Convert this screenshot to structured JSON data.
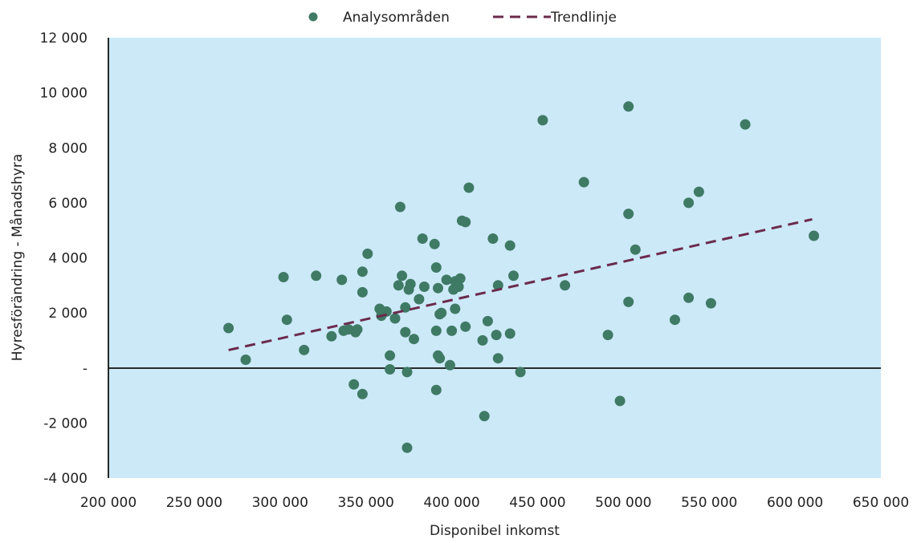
{
  "chart_data": {
    "type": "scatter",
    "xlabel": "Disponibel inkomst",
    "ylabel": "Hyresförändring - Månadshyra",
    "xlim": [
      200000,
      650000
    ],
    "ylim": [
      -4000,
      12000
    ],
    "x_ticks": [
      200000,
      250000,
      300000,
      350000,
      400000,
      450000,
      500000,
      550000,
      600000,
      650000
    ],
    "x_tick_labels": [
      "200 000",
      "250 000",
      "300 000",
      "350 000",
      "400 000",
      "450 000",
      "500 000",
      "550 000",
      "600 000",
      "650 000"
    ],
    "y_ticks": [
      12000,
      10000,
      8000,
      6000,
      4000,
      2000,
      0,
      -2000,
      -4000
    ],
    "y_tick_labels": [
      "12 000",
      "10 000",
      "8 000",
      "6 000",
      "4 000",
      "2 000",
      "-",
      "-2 000",
      "-4 000"
    ],
    "legend": {
      "position": "top-center",
      "scatter_label": "Analysområden",
      "trend_label": "Trendlinje"
    },
    "colors": {
      "points": "#3f7a65",
      "trend": "#6b2a4c",
      "plot_background": "#cce9f8",
      "zero_line": "#111111"
    },
    "trendline": {
      "x": [
        270000,
        610000
      ],
      "y": [
        650,
        5400
      ]
    },
    "series": [
      {
        "name": "Analysområden",
        "points": [
          [
            270000,
            1450
          ],
          [
            280000,
            300
          ],
          [
            302000,
            3300
          ],
          [
            304000,
            1750
          ],
          [
            314000,
            650
          ],
          [
            321000,
            3350
          ],
          [
            330000,
            1150
          ],
          [
            336000,
            3200
          ],
          [
            337000,
            1350
          ],
          [
            340000,
            1400
          ],
          [
            343000,
            -600
          ],
          [
            344000,
            1300
          ],
          [
            345000,
            1400
          ],
          [
            348000,
            3500
          ],
          [
            348000,
            2750
          ],
          [
            348000,
            -950
          ],
          [
            351000,
            4150
          ],
          [
            358000,
            2150
          ],
          [
            359000,
            1900
          ],
          [
            362000,
            2050
          ],
          [
            364000,
            -50
          ],
          [
            364000,
            450
          ],
          [
            367000,
            1800
          ],
          [
            369000,
            3000
          ],
          [
            370000,
            5850
          ],
          [
            371000,
            3350
          ],
          [
            373000,
            1300
          ],
          [
            373000,
            2200
          ],
          [
            374000,
            -150
          ],
          [
            374000,
            -2900
          ],
          [
            375000,
            2850
          ],
          [
            376000,
            3050
          ],
          [
            378000,
            1050
          ],
          [
            381000,
            2500
          ],
          [
            383000,
            4700
          ],
          [
            384000,
            2950
          ],
          [
            390000,
            4500
          ],
          [
            391000,
            3650
          ],
          [
            391000,
            1350
          ],
          [
            391000,
            -800
          ],
          [
            392000,
            2900
          ],
          [
            392000,
            450
          ],
          [
            393000,
            350
          ],
          [
            393000,
            1950
          ],
          [
            394000,
            2000
          ],
          [
            397000,
            3200
          ],
          [
            399000,
            100
          ],
          [
            400000,
            1350
          ],
          [
            401000,
            2850
          ],
          [
            402000,
            2150
          ],
          [
            402000,
            3150
          ],
          [
            404000,
            2950
          ],
          [
            405000,
            3250
          ],
          [
            406000,
            5350
          ],
          [
            408000,
            5300
          ],
          [
            408000,
            1500
          ],
          [
            410000,
            6550
          ],
          [
            418000,
            1000
          ],
          [
            419000,
            -1750
          ],
          [
            421000,
            1700
          ],
          [
            424000,
            4700
          ],
          [
            426000,
            1200
          ],
          [
            427000,
            350
          ],
          [
            427000,
            3000
          ],
          [
            434000,
            4450
          ],
          [
            434000,
            1250
          ],
          [
            436000,
            3350
          ],
          [
            440000,
            -150
          ],
          [
            453000,
            9000
          ],
          [
            466000,
            3000
          ],
          [
            477000,
            6750
          ],
          [
            491000,
            1200
          ],
          [
            498000,
            -1200
          ],
          [
            503000,
            9500
          ],
          [
            503000,
            5600
          ],
          [
            503000,
            2400
          ],
          [
            507000,
            4300
          ],
          [
            530000,
            1750
          ],
          [
            538000,
            6000
          ],
          [
            538000,
            2550
          ],
          [
            544000,
            6400
          ],
          [
            551000,
            2350
          ],
          [
            571000,
            8850
          ],
          [
            611000,
            4800
          ]
        ]
      }
    ]
  }
}
